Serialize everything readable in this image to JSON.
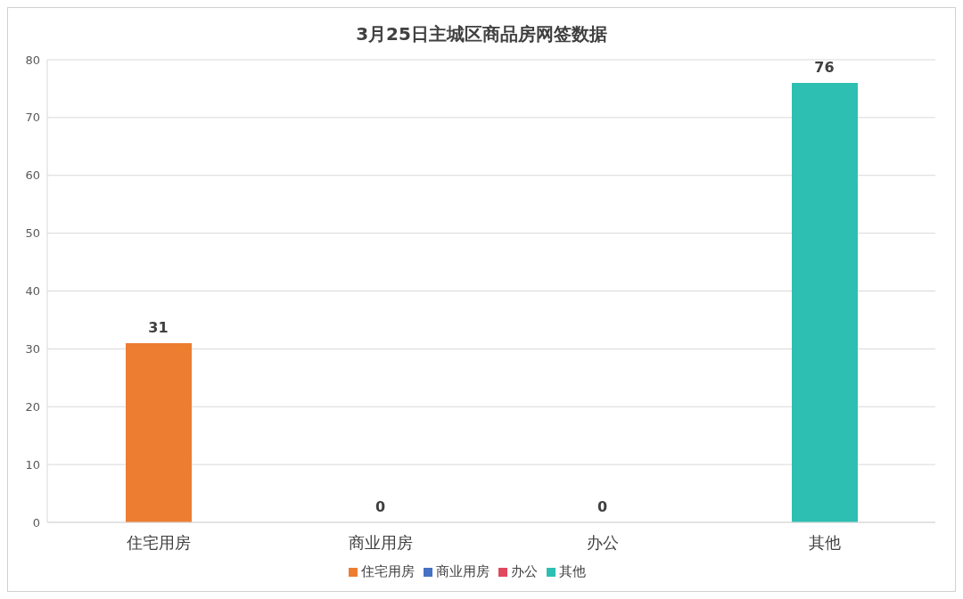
{
  "chart_data": {
    "type": "bar",
    "title": "3月25日主城区商品房网签数据",
    "categories": [
      "住宅用房",
      "商业用房",
      "办公",
      "其他"
    ],
    "series": [
      {
        "name": "住宅用房",
        "color": "#ed7d31",
        "values": [
          31,
          null,
          null,
          null
        ]
      },
      {
        "name": "商业用房",
        "color": "#4472c4",
        "values": [
          null,
          0,
          null,
          null
        ]
      },
      {
        "name": "办公",
        "color": "#e0485e",
        "values": [
          null,
          null,
          0,
          null
        ]
      },
      {
        "name": "其他",
        "color": "#2ebfb3",
        "values": [
          null,
          null,
          null,
          76
        ]
      }
    ],
    "stacked": true,
    "ylim": [
      0,
      80
    ],
    "yticks": [
      0,
      10,
      20,
      30,
      40,
      50,
      60,
      70,
      80
    ],
    "grid": "y",
    "legend": "bottom",
    "data_labels": true
  }
}
